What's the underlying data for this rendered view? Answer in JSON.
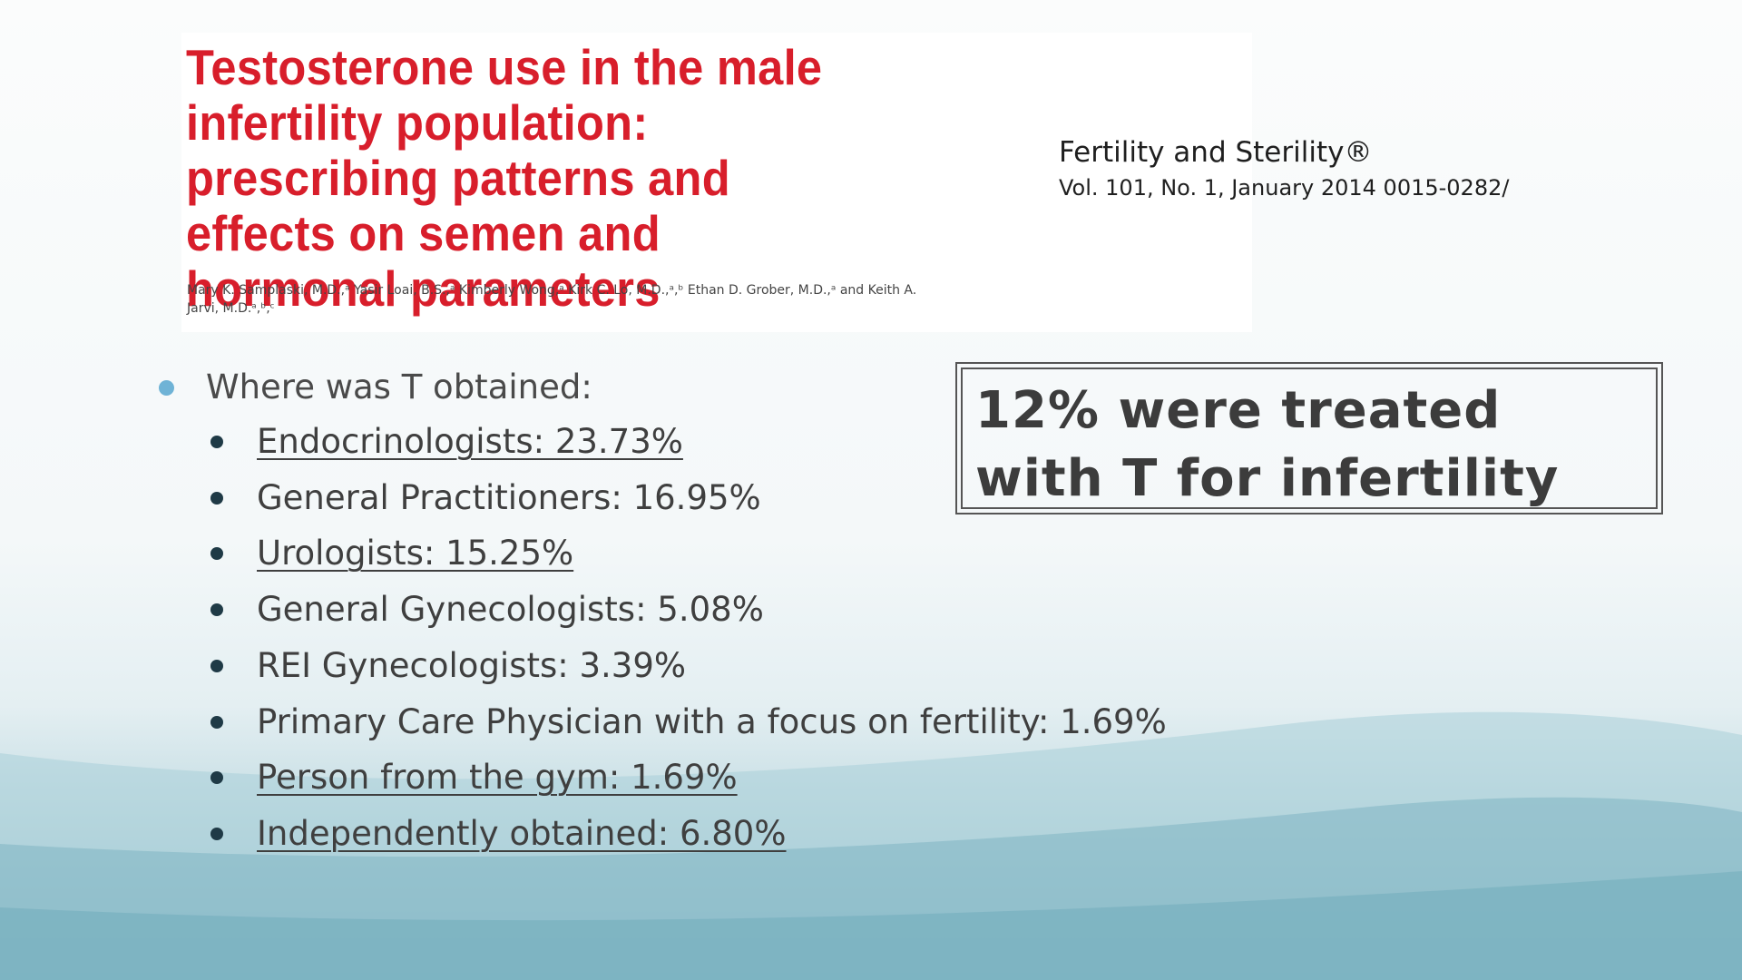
{
  "paper": {
    "title": "Testosterone use in the male infertility population: prescribing patterns and effects on semen and hormonal parameters",
    "authors": "Mary K. Samplaski, M.D.,ᵃ Yasir Loai, B.S.,ᵃ Kimberly Wong,ᵃ Kirk C. Lo, M.D.,ᵃ,ᵇ Ethan D. Grober, M.D.,ᵃ and Keith A. Jarvi, M.D.ᵃ,ᵇ,ᶜ"
  },
  "journal": {
    "name": "Fertility and Sterility®",
    "volume": "Vol. 101, No. 1, January 2014 0015-0282/"
  },
  "callout": {
    "text": "12% were treated with T for infertility"
  },
  "main_bullet": "Where was T obtained:",
  "sources": [
    {
      "label": "Endocrinologists: 23.73%",
      "underlined": true
    },
    {
      "label": "General Practitioners: 16.95%",
      "underlined": false
    },
    {
      "label": "Urologists: 15.25%",
      "underlined": true
    },
    {
      "label": "General Gynecologists: 5.08%",
      "underlined": false
    },
    {
      "label": "REI Gynecologists: 3.39%",
      "underlined": false
    },
    {
      "label": "Primary Care Physician with a focus on fertility: 1.69%",
      "underlined": false
    },
    {
      "label": "Person from the gym: 1.69%",
      "underlined": true
    },
    {
      "label": "Independently obtained: 6.80%",
      "underlined": true
    }
  ],
  "colors": {
    "title": "#d81e2b",
    "main_bullet": "#6fb3d6",
    "sub_bullet": "#1f3a46"
  }
}
